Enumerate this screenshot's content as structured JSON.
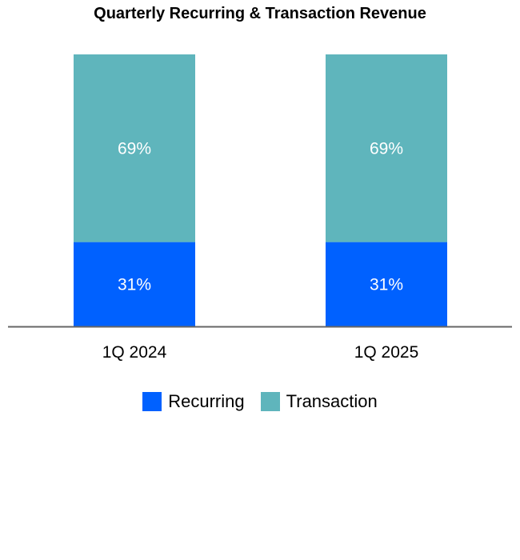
{
  "chart_data": {
    "type": "bar",
    "stacked": true,
    "title": "Quarterly Recurring & Transaction Revenue",
    "categories": [
      "1Q 2024",
      "1Q 2025"
    ],
    "series": [
      {
        "name": "Recurring",
        "values": [
          31,
          31
        ],
        "labels": [
          "31%",
          "31%"
        ],
        "color": "#0061FF"
      },
      {
        "name": "Transaction",
        "values": [
          69,
          69
        ],
        "labels": [
          "69%",
          "69%"
        ],
        "color": "#5FB5BC"
      }
    ],
    "ylim": [
      0,
      100
    ],
    "grid": false,
    "legend": "bottom"
  }
}
